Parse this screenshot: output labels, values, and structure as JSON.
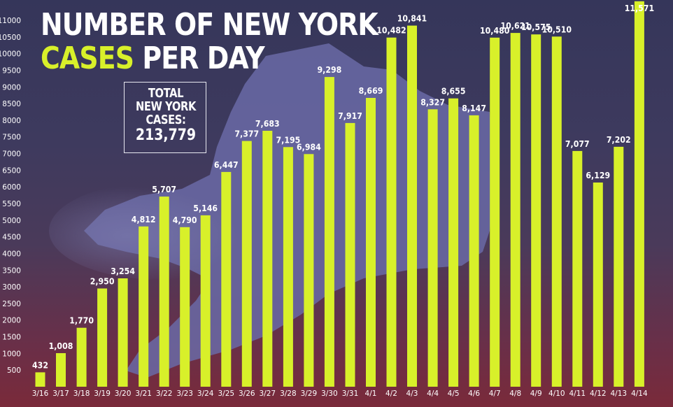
{
  "headline": {
    "line1": "NUMBER OF NEW YORK",
    "line2_highlight": "CASES",
    "line2_rest": " PER DAY"
  },
  "total_box": {
    "label": "TOTAL\nNEW YORK\nCASES:",
    "value": "213,779"
  },
  "colors": {
    "bar": "#d8f02a",
    "text": "#ffffff",
    "state_shape": "#6a6aa6"
  },
  "chart_data": {
    "type": "bar",
    "title": "NUMBER OF NEW YORK CASES PER DAY",
    "xlabel": "",
    "ylabel": "",
    "ylim": [
      0,
      11000
    ],
    "yticks": [
      500,
      1000,
      1500,
      2000,
      2500,
      3000,
      3500,
      4000,
      4500,
      5000,
      5500,
      6000,
      6500,
      7000,
      7500,
      8000,
      8500,
      9000,
      9500,
      10000,
      10500,
      11000
    ],
    "grid": false,
    "categories": [
      "3/16",
      "3/17",
      "3/18",
      "3/19",
      "3/20",
      "3/21",
      "3/22",
      "3/23",
      "3/24",
      "3/25",
      "3/26",
      "3/27",
      "3/28",
      "3/29",
      "3/30",
      "3/31",
      "4/1",
      "4/2",
      "4/3",
      "4/4",
      "4/5",
      "4/6",
      "4/7",
      "4/8",
      "4/9",
      "4/10",
      "4/11",
      "4/12",
      "4/13",
      "4/14"
    ],
    "values": [
      432,
      1008,
      1770,
      2950,
      3254,
      4812,
      5707,
      4790,
      5146,
      6447,
      7377,
      7683,
      7195,
      6984,
      9298,
      7917,
      8669,
      10482,
      10841,
      8327,
      8655,
      8147,
      10480,
      10621,
      10575,
      10510,
      7077,
      6129,
      7202,
      11571
    ],
    "data_labels": [
      "432",
      "1,008",
      "1,770",
      "2,950",
      "3,254",
      "4,812",
      "5,707",
      "4,790",
      "5,146",
      "6,447",
      "7,377",
      "7,683",
      "7,195",
      "6,984",
      "9,298",
      "7,917",
      "8,669",
      "10,482",
      "10,841",
      "8,327",
      "8,655",
      "8,147",
      "10,480",
      "10,621",
      "10,575",
      "10,510",
      "7,077",
      "6,129",
      "7,202",
      "11,571"
    ]
  }
}
